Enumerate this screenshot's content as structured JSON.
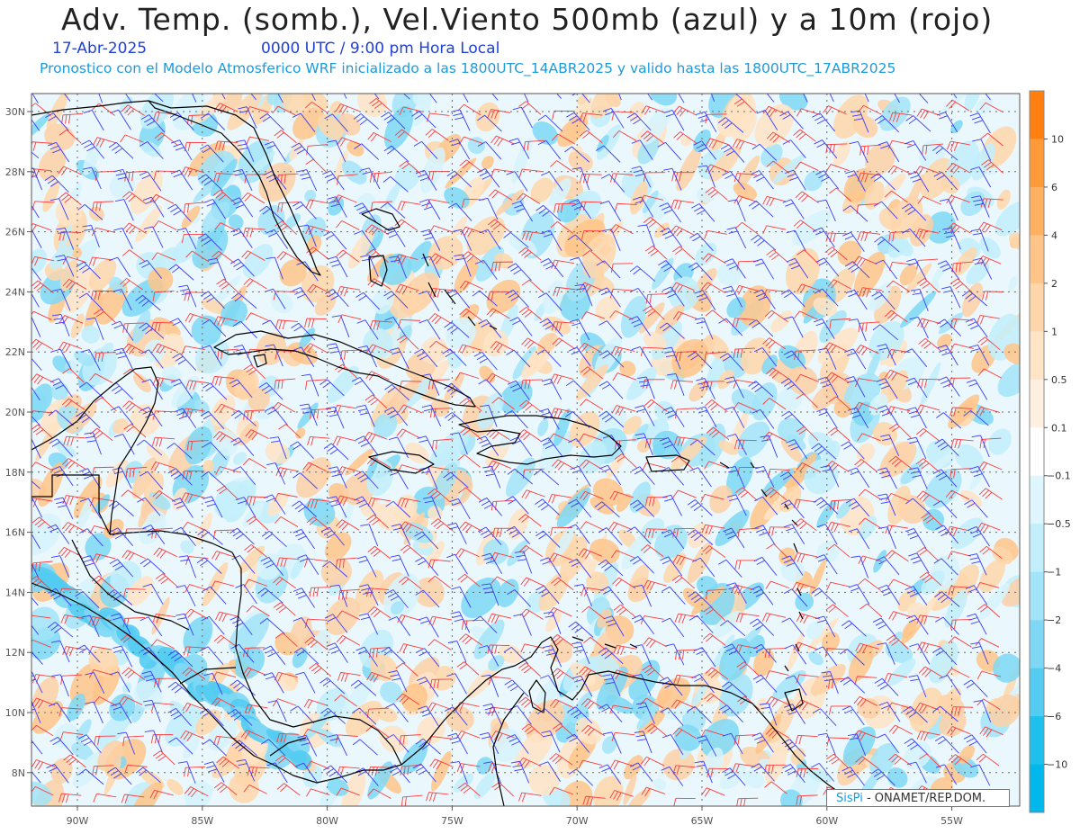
{
  "header": {
    "title": "Adv. Temp. (somb.), Vel.Viento 500mb (azul) y a 10m (rojo)",
    "date": "17-Abr-2025",
    "time": "0000 UTC / 9:00 pm Hora Local",
    "forecast_info": "Pronostico con el Modelo Atmosferico WRF inicializado a las 1800UTC_14ABR2025 y valido hasta las  1800UTC_17ABR2025"
  },
  "axes": {
    "lat_labels": [
      "30N",
      "28N",
      "26N",
      "24N",
      "22N",
      "20N",
      "18N",
      "16N",
      "14N",
      "12N",
      "10N",
      "8N"
    ],
    "lon_labels": [
      "90W",
      "85W",
      "80W",
      "75W",
      "70W",
      "65W",
      "60W",
      "55W"
    ]
  },
  "colorbar": {
    "labels": [
      "10",
      "6",
      "4",
      "2",
      "1",
      "0.5",
      "0.1",
      "-0.1",
      "-0.5",
      "-1",
      "-2",
      "-4",
      "-6",
      "-10"
    ],
    "colors": [
      "#ff8010",
      "#ff9a38",
      "#ffb060",
      "#ffc488",
      "#ffd6aa",
      "#ffe4c6",
      "#fff0e2",
      "#ffffff",
      "#e0f6fe",
      "#c2eefb",
      "#a2e4f8",
      "#7ed8f5",
      "#54ccf2",
      "#1ec0ee",
      "#00b8ec"
    ]
  },
  "legend": {
    "wind_500mb_color": "#3a3aff",
    "wind_10m_color": "#ff3a3a"
  },
  "credit": {
    "brand": "SisPi",
    "text": " - ONAMET/REP.DOM."
  }
}
